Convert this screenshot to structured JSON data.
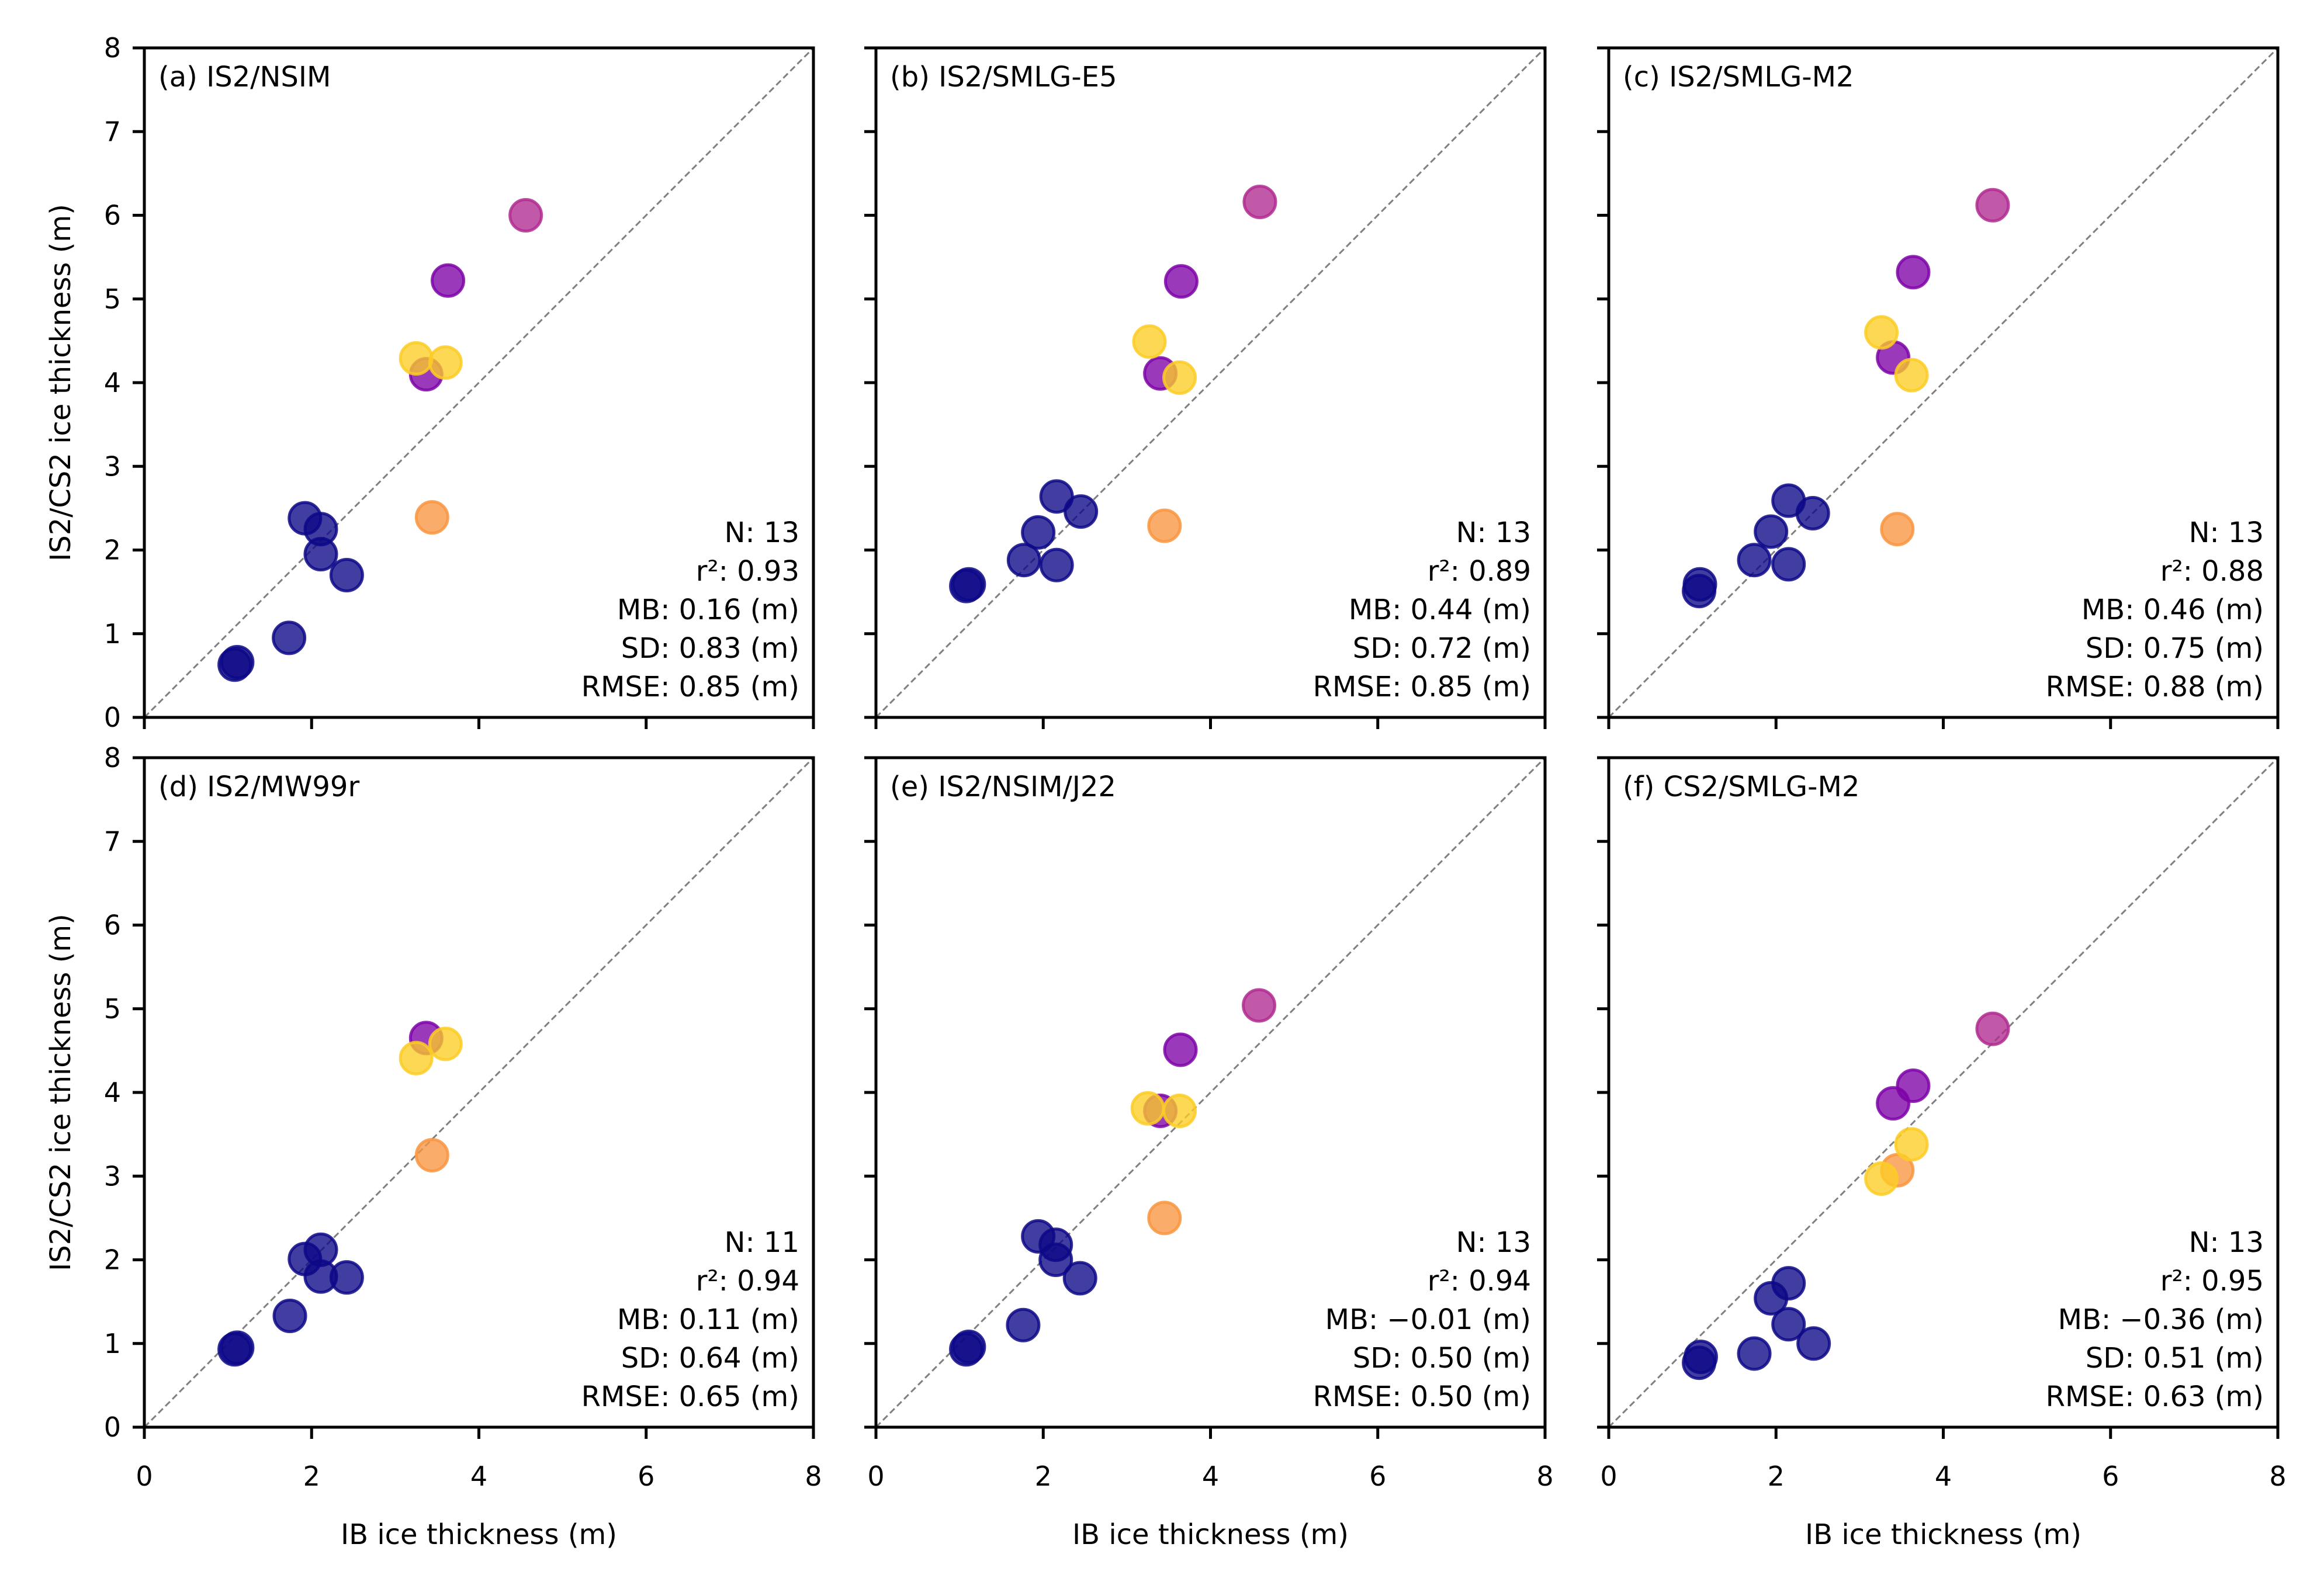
{
  "chart_data": {
    "type": "scatter",
    "layout": "2x3 grid",
    "shared_xlabel": "IB ice thickness (m)",
    "shared_ylabel": "IS2/CS2 ice thickness (m)",
    "xlim": [
      0,
      8
    ],
    "ylim": [
      0,
      8
    ],
    "xticks": [
      "0",
      "2",
      "4",
      "6",
      "8"
    ],
    "yticks": [
      "0",
      "1",
      "2",
      "3",
      "4",
      "5",
      "6",
      "7",
      "8"
    ],
    "reference_line": "1:1 dashed",
    "color_groups": {
      "navy": "#0d0887",
      "purple": "#7e03a8",
      "magenta": "#b12a90",
      "orange": "#f89540",
      "yellow": "#fccd25"
    },
    "panels": [
      {
        "title": "(a) IS2/NSIM",
        "stats": [
          "N: 13",
          "r²: 0.93",
          "MB: 0.16 (m)",
          "SD: 0.83 (m)",
          "RMSE: 0.85 (m)"
        ],
        "points": [
          {
            "x": 1.08,
            "y": 0.63,
            "c": "navy"
          },
          {
            "x": 1.11,
            "y": 0.66,
            "c": "navy"
          },
          {
            "x": 1.73,
            "y": 0.95,
            "c": "navy"
          },
          {
            "x": 1.92,
            "y": 2.38,
            "c": "navy"
          },
          {
            "x": 2.11,
            "y": 2.25,
            "c": "navy"
          },
          {
            "x": 2.11,
            "y": 1.95,
            "c": "navy"
          },
          {
            "x": 2.42,
            "y": 1.7,
            "c": "navy"
          },
          {
            "x": 3.44,
            "y": 2.39,
            "c": "orange"
          },
          {
            "x": 3.37,
            "y": 4.1,
            "c": "purple"
          },
          {
            "x": 3.25,
            "y": 4.29,
            "c": "yellow"
          },
          {
            "x": 3.6,
            "y": 4.24,
            "c": "yellow"
          },
          {
            "x": 3.63,
            "y": 5.22,
            "c": "purple"
          },
          {
            "x": 4.56,
            "y": 6.0,
            "c": "magenta"
          }
        ]
      },
      {
        "title": "(b) IS2/SMLG-E5",
        "stats": [
          "N: 13",
          "r²: 0.89",
          "MB: 0.44 (m)",
          "SD: 0.72 (m)",
          "RMSE: 0.85 (m)"
        ],
        "points": [
          {
            "x": 1.08,
            "y": 1.57,
            "c": "navy"
          },
          {
            "x": 1.11,
            "y": 1.59,
            "c": "navy"
          },
          {
            "x": 1.77,
            "y": 1.88,
            "c": "navy"
          },
          {
            "x": 1.94,
            "y": 2.21,
            "c": "navy"
          },
          {
            "x": 2.16,
            "y": 2.64,
            "c": "navy"
          },
          {
            "x": 2.16,
            "y": 1.82,
            "c": "navy"
          },
          {
            "x": 2.45,
            "y": 2.46,
            "c": "navy"
          },
          {
            "x": 3.45,
            "y": 2.29,
            "c": "orange"
          },
          {
            "x": 3.4,
            "y": 4.11,
            "c": "purple"
          },
          {
            "x": 3.27,
            "y": 4.49,
            "c": "yellow"
          },
          {
            "x": 3.63,
            "y": 4.06,
            "c": "yellow"
          },
          {
            "x": 3.65,
            "y": 5.21,
            "c": "purple"
          },
          {
            "x": 4.59,
            "y": 6.16,
            "c": "magenta"
          }
        ]
      },
      {
        "title": "(c) IS2/SMLG-M2",
        "stats": [
          "N: 13",
          "r²: 0.88",
          "MB: 0.46 (m)",
          "SD: 0.75 (m)",
          "RMSE: 0.88 (m)"
        ],
        "points": [
          {
            "x": 1.09,
            "y": 1.59,
            "c": "navy"
          },
          {
            "x": 1.08,
            "y": 1.51,
            "c": "navy"
          },
          {
            "x": 1.74,
            "y": 1.88,
            "c": "navy"
          },
          {
            "x": 1.94,
            "y": 2.22,
            "c": "navy"
          },
          {
            "x": 2.15,
            "y": 2.59,
            "c": "navy"
          },
          {
            "x": 2.15,
            "y": 1.83,
            "c": "navy"
          },
          {
            "x": 2.44,
            "y": 2.44,
            "c": "navy"
          },
          {
            "x": 3.45,
            "y": 2.25,
            "c": "orange"
          },
          {
            "x": 3.4,
            "y": 4.3,
            "c": "purple"
          },
          {
            "x": 3.26,
            "y": 4.6,
            "c": "yellow"
          },
          {
            "x": 3.62,
            "y": 4.09,
            "c": "yellow"
          },
          {
            "x": 3.64,
            "y": 5.32,
            "c": "purple"
          },
          {
            "x": 4.59,
            "y": 6.12,
            "c": "magenta"
          }
        ]
      },
      {
        "title": "(d) IS2/MW99r",
        "stats": [
          "N: 11",
          "r²: 0.94",
          "MB: 0.11 (m)",
          "SD: 0.64 (m)",
          "RMSE: 0.65 (m)"
        ],
        "points": [
          {
            "x": 1.08,
            "y": 0.93,
            "c": "navy"
          },
          {
            "x": 1.11,
            "y": 0.95,
            "c": "navy"
          },
          {
            "x": 1.74,
            "y": 1.33,
            "c": "navy"
          },
          {
            "x": 1.92,
            "y": 2.01,
            "c": "navy"
          },
          {
            "x": 2.11,
            "y": 2.12,
            "c": "navy"
          },
          {
            "x": 2.11,
            "y": 1.8,
            "c": "navy"
          },
          {
            "x": 2.42,
            "y": 1.79,
            "c": "navy"
          },
          {
            "x": 3.44,
            "y": 3.25,
            "c": "orange"
          },
          {
            "x": 3.37,
            "y": 4.65,
            "c": "purple"
          },
          {
            "x": 3.25,
            "y": 4.41,
            "c": "yellow"
          },
          {
            "x": 3.6,
            "y": 4.58,
            "c": "yellow"
          }
        ]
      },
      {
        "title": "(e) IS2/NSIM/J22",
        "stats": [
          "N: 13",
          "r²: 0.94",
          "MB: −0.01 (m)",
          "SD: 0.50 (m)",
          "RMSE: 0.50 (m)"
        ],
        "points": [
          {
            "x": 1.08,
            "y": 0.93,
            "c": "navy"
          },
          {
            "x": 1.11,
            "y": 0.96,
            "c": "navy"
          },
          {
            "x": 1.76,
            "y": 1.22,
            "c": "navy"
          },
          {
            "x": 1.94,
            "y": 2.28,
            "c": "navy"
          },
          {
            "x": 2.15,
            "y": 2.18,
            "c": "navy"
          },
          {
            "x": 2.15,
            "y": 2.0,
            "c": "navy"
          },
          {
            "x": 2.44,
            "y": 1.78,
            "c": "navy"
          },
          {
            "x": 3.45,
            "y": 2.5,
            "c": "orange"
          },
          {
            "x": 3.4,
            "y": 3.78,
            "c": "purple"
          },
          {
            "x": 3.25,
            "y": 3.81,
            "c": "yellow"
          },
          {
            "x": 3.63,
            "y": 3.78,
            "c": "yellow"
          },
          {
            "x": 3.64,
            "y": 4.51,
            "c": "purple"
          },
          {
            "x": 4.58,
            "y": 5.04,
            "c": "magenta"
          }
        ]
      },
      {
        "title": "(f) CS2/SMLG-M2",
        "stats": [
          "N: 13",
          "r²: 0.95",
          "MB: −0.36 (m)",
          "SD: 0.51 (m)",
          "RMSE: 0.63 (m)"
        ],
        "points": [
          {
            "x": 1.1,
            "y": 0.84,
            "c": "navy"
          },
          {
            "x": 1.08,
            "y": 0.77,
            "c": "navy"
          },
          {
            "x": 1.74,
            "y": 0.88,
            "c": "navy"
          },
          {
            "x": 1.94,
            "y": 1.54,
            "c": "navy"
          },
          {
            "x": 2.15,
            "y": 1.72,
            "c": "navy"
          },
          {
            "x": 2.15,
            "y": 1.23,
            "c": "navy"
          },
          {
            "x": 2.45,
            "y": 1.0,
            "c": "navy"
          },
          {
            "x": 3.45,
            "y": 3.07,
            "c": "orange"
          },
          {
            "x": 3.26,
            "y": 2.97,
            "c": "yellow"
          },
          {
            "x": 3.62,
            "y": 3.38,
            "c": "yellow"
          },
          {
            "x": 3.4,
            "y": 3.87,
            "c": "purple"
          },
          {
            "x": 3.64,
            "y": 4.08,
            "c": "purple"
          },
          {
            "x": 4.59,
            "y": 4.76,
            "c": "magenta"
          }
        ]
      }
    ]
  }
}
